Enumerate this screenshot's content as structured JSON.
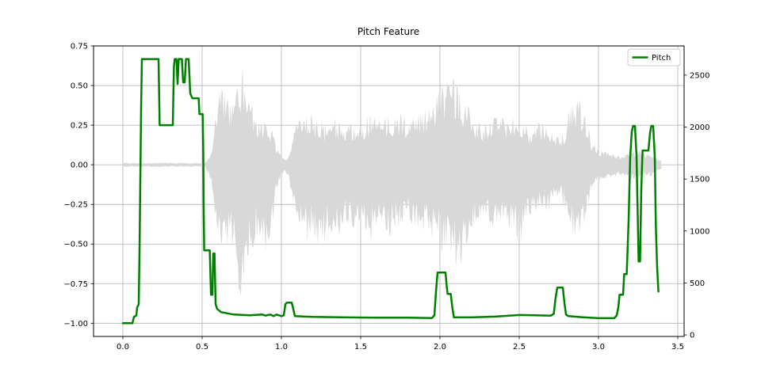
{
  "title": "Pitch Feature",
  "legend": {
    "position": "upper-right",
    "entries": [
      {
        "label": "Pitch",
        "color": "#008000"
      }
    ]
  },
  "colors": {
    "pitch_line": "#008000",
    "waveform_fill": "#d8d8d8",
    "grid": "#b0b0b0",
    "spine": "#000000",
    "background": "#ffffff",
    "legend_border": "#cccccc",
    "tick_text": "#000000"
  },
  "chart_data": {
    "type": "line",
    "title": "Pitch Feature",
    "grid": true,
    "legend_entries": [
      "Pitch"
    ],
    "x_axis": {
      "range": [
        -0.185,
        3.54
      ],
      "ticks": [
        0.0,
        0.5,
        1.0,
        1.5,
        2.0,
        2.5,
        3.0,
        3.5
      ],
      "tick_labels": [
        "0.0",
        "0.5",
        "1.0",
        "1.5",
        "2.0",
        "2.5",
        "3.0",
        "3.5"
      ]
    },
    "y_axis_left": {
      "range": [
        -1.0833,
        0.75
      ],
      "ticks": [
        0.75,
        0.5,
        0.25,
        0.0,
        -0.25,
        -0.5,
        -0.75,
        -1.0
      ],
      "tick_labels": [
        "0.75",
        "0.50",
        "0.25",
        "0.00",
        "−0.25",
        "−0.50",
        "−0.75",
        "−1.00"
      ]
    },
    "y_axis_right": {
      "range": [
        -15,
        2781
      ],
      "ticks": [
        0,
        500,
        1000,
        1500,
        2000,
        2500
      ],
      "tick_labels": [
        "0",
        "500",
        "1000",
        "1500",
        "2000",
        "2500"
      ]
    },
    "series": [
      {
        "name": "Pitch",
        "type": "line",
        "axis": "left",
        "color": "#008000",
        "line_width": 2.5,
        "points": [
          [
            0.0,
            -1.0
          ],
          [
            0.06,
            -1.0
          ],
          [
            0.07,
            -0.96
          ],
          [
            0.085,
            -0.95
          ],
          [
            0.09,
            -0.9
          ],
          [
            0.1,
            -0.88
          ],
          [
            0.105,
            -0.55
          ],
          [
            0.115,
            0.35
          ],
          [
            0.12,
            0.667
          ],
          [
            0.225,
            0.667
          ],
          [
            0.232,
            0.25
          ],
          [
            0.315,
            0.25
          ],
          [
            0.322,
            0.62
          ],
          [
            0.327,
            0.667
          ],
          [
            0.338,
            0.667
          ],
          [
            0.345,
            0.51
          ],
          [
            0.352,
            0.667
          ],
          [
            0.372,
            0.667
          ],
          [
            0.38,
            0.52
          ],
          [
            0.39,
            0.52
          ],
          [
            0.398,
            0.667
          ],
          [
            0.415,
            0.667
          ],
          [
            0.425,
            0.45
          ],
          [
            0.438,
            0.42
          ],
          [
            0.478,
            0.42
          ],
          [
            0.483,
            0.32
          ],
          [
            0.503,
            0.32
          ],
          [
            0.507,
            0.1
          ],
          [
            0.51,
            -0.3
          ],
          [
            0.513,
            -0.54
          ],
          [
            0.548,
            -0.54
          ],
          [
            0.553,
            -0.72
          ],
          [
            0.556,
            -0.82
          ],
          [
            0.565,
            -0.82
          ],
          [
            0.57,
            -0.56
          ],
          [
            0.578,
            -0.56
          ],
          [
            0.585,
            -0.88
          ],
          [
            0.595,
            -0.91
          ],
          [
            0.62,
            -0.93
          ],
          [
            0.7,
            -0.945
          ],
          [
            0.8,
            -0.95
          ],
          [
            0.88,
            -0.945
          ],
          [
            0.9,
            -0.952
          ],
          [
            0.93,
            -0.945
          ],
          [
            0.95,
            -0.955
          ],
          [
            0.97,
            -0.945
          ],
          [
            1.0,
            -0.955
          ],
          [
            1.015,
            -0.95
          ],
          [
            1.025,
            -0.88
          ],
          [
            1.035,
            -0.87
          ],
          [
            1.065,
            -0.87
          ],
          [
            1.075,
            -0.91
          ],
          [
            1.085,
            -0.955
          ],
          [
            1.2,
            -0.96
          ],
          [
            1.4,
            -0.963
          ],
          [
            1.6,
            -0.965
          ],
          [
            1.8,
            -0.965
          ],
          [
            1.95,
            -0.967
          ],
          [
            1.965,
            -0.95
          ],
          [
            1.975,
            -0.8
          ],
          [
            1.985,
            -0.68
          ],
          [
            2.035,
            -0.68
          ],
          [
            2.042,
            -0.76
          ],
          [
            2.048,
            -0.815
          ],
          [
            2.068,
            -0.815
          ],
          [
            2.078,
            -0.9
          ],
          [
            2.088,
            -0.963
          ],
          [
            2.2,
            -0.963
          ],
          [
            2.35,
            -0.958
          ],
          [
            2.5,
            -0.948
          ],
          [
            2.6,
            -0.95
          ],
          [
            2.7,
            -0.952
          ],
          [
            2.718,
            -0.94
          ],
          [
            2.728,
            -0.85
          ],
          [
            2.74,
            -0.775
          ],
          [
            2.775,
            -0.775
          ],
          [
            2.785,
            -0.87
          ],
          [
            2.795,
            -0.945
          ],
          [
            2.81,
            -0.955
          ],
          [
            2.9,
            -0.962
          ],
          [
            3.0,
            -0.968
          ],
          [
            3.1,
            -0.968
          ],
          [
            3.115,
            -0.95
          ],
          [
            3.125,
            -0.9
          ],
          [
            3.133,
            -0.82
          ],
          [
            3.155,
            -0.82
          ],
          [
            3.162,
            -0.69
          ],
          [
            3.178,
            -0.69
          ],
          [
            3.19,
            -0.35
          ],
          [
            3.2,
            0.05
          ],
          [
            3.21,
            0.21
          ],
          [
            3.218,
            0.245
          ],
          [
            3.23,
            0.245
          ],
          [
            3.24,
            0.05
          ],
          [
            3.248,
            -0.35
          ],
          [
            3.253,
            -0.61
          ],
          [
            3.262,
            -0.61
          ],
          [
            3.27,
            -0.15
          ],
          [
            3.278,
            0.09
          ],
          [
            3.315,
            0.09
          ],
          [
            3.325,
            0.2
          ],
          [
            3.333,
            0.245
          ],
          [
            3.345,
            0.245
          ],
          [
            3.355,
            0.05
          ],
          [
            3.362,
            -0.4
          ],
          [
            3.37,
            -0.65
          ],
          [
            3.378,
            -0.8
          ]
        ]
      },
      {
        "name": "waveform",
        "type": "envelope",
        "axis": "left",
        "color": "#d8d8d8",
        "t_start": 0,
        "t_step": 0.04,
        "pos": [
          0.012,
          0.012,
          0.014,
          0.012,
          0.013,
          0.012,
          0.014,
          0.012,
          0.013,
          0.014,
          0.012,
          0.013,
          0.013,
          0.015,
          0.1,
          0.45,
          0.52,
          0.4,
          0.55,
          0.62,
          0.45,
          0.33,
          0.28,
          0.3,
          0.15,
          0.05,
          0.05,
          0.22,
          0.3,
          0.37,
          0.3,
          0.3,
          0.26,
          0.31,
          0.3,
          0.24,
          0.28,
          0.24,
          0.28,
          0.33,
          0.3,
          0.28,
          0.33,
          0.3,
          0.33,
          0.28,
          0.33,
          0.38,
          0.33,
          0.42,
          0.5,
          0.55,
          0.57,
          0.5,
          0.42,
          0.33,
          0.28,
          0.26,
          0.3,
          0.34,
          0.3,
          0.32,
          0.3,
          0.28,
          0.24,
          0.25,
          0.3,
          0.27,
          0.22,
          0.18,
          0.28,
          0.45,
          0.42,
          0.33,
          0.15,
          0.1,
          0.09,
          0.08,
          0.06,
          0.06,
          0.09,
          0.1,
          0.08,
          0.07,
          0.05,
          0.03
        ],
        "neg": [
          0.012,
          0.012,
          0.014,
          0.013,
          0.012,
          0.013,
          0.014,
          0.012,
          0.013,
          0.014,
          0.012,
          0.013,
          0.013,
          0.016,
          0.12,
          0.5,
          0.6,
          0.48,
          0.75,
          1.0,
          0.6,
          0.45,
          0.55,
          0.62,
          0.25,
          0.06,
          0.06,
          0.28,
          0.4,
          0.5,
          0.45,
          0.55,
          0.48,
          0.45,
          0.5,
          0.38,
          0.44,
          0.38,
          0.42,
          0.5,
          0.44,
          0.4,
          0.46,
          0.42,
          0.46,
          0.4,
          0.44,
          0.5,
          0.44,
          0.5,
          0.55,
          0.6,
          0.64,
          0.66,
          0.58,
          0.45,
          0.35,
          0.32,
          0.38,
          0.42,
          0.4,
          0.44,
          0.46,
          0.5,
          0.38,
          0.3,
          0.3,
          0.31,
          0.26,
          0.21,
          0.33,
          0.45,
          0.5,
          0.36,
          0.16,
          0.11,
          0.1,
          0.09,
          0.07,
          0.07,
          0.1,
          0.11,
          0.09,
          0.08,
          0.06,
          0.03
        ]
      }
    ]
  }
}
